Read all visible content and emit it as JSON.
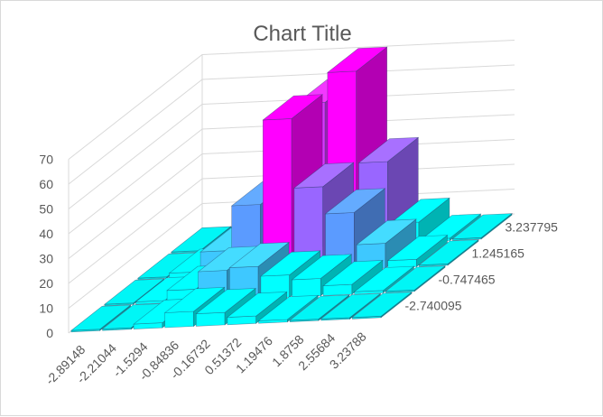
{
  "chart_data": {
    "type": "bar3d",
    "title": "Chart Title",
    "zlim": [
      0,
      70
    ],
    "z_ticks": [
      "0",
      "10",
      "20",
      "30",
      "40",
      "50",
      "60",
      "70"
    ],
    "x_categories": [
      "-2.89148",
      "-2.21044",
      "-1.5294",
      "-0.84836",
      "-0.16732",
      "0.51372",
      "1.19476",
      "1.8758",
      "2.55684",
      "3.23788"
    ],
    "y_categories": [
      "-2.740095",
      "-0.747465",
      "1.245165",
      "3.237795"
    ],
    "values": [
      [
        0,
        0,
        2,
        6,
        5,
        3,
        1,
        0.5,
        0,
        0
      ],
      [
        0,
        1,
        5,
        12,
        13,
        9,
        7,
        4,
        1,
        0
      ],
      [
        0,
        2,
        10,
        28,
        62,
        34,
        23,
        10,
        3,
        0
      ],
      [
        0,
        1,
        7,
        18,
        58,
        70,
        33,
        8,
        1,
        0
      ]
    ],
    "gridlines": true,
    "legend": "none",
    "colors": {
      "low": "#00ffff",
      "mid_low": "#3ec8ff",
      "mid": "#5b9bff",
      "mid_high": "#9966ff",
      "high": "#dd33ff",
      "top": "#ff00ff",
      "floor": "#00e0e0",
      "grid": "#d9d9d9",
      "text": "#595959"
    }
  }
}
